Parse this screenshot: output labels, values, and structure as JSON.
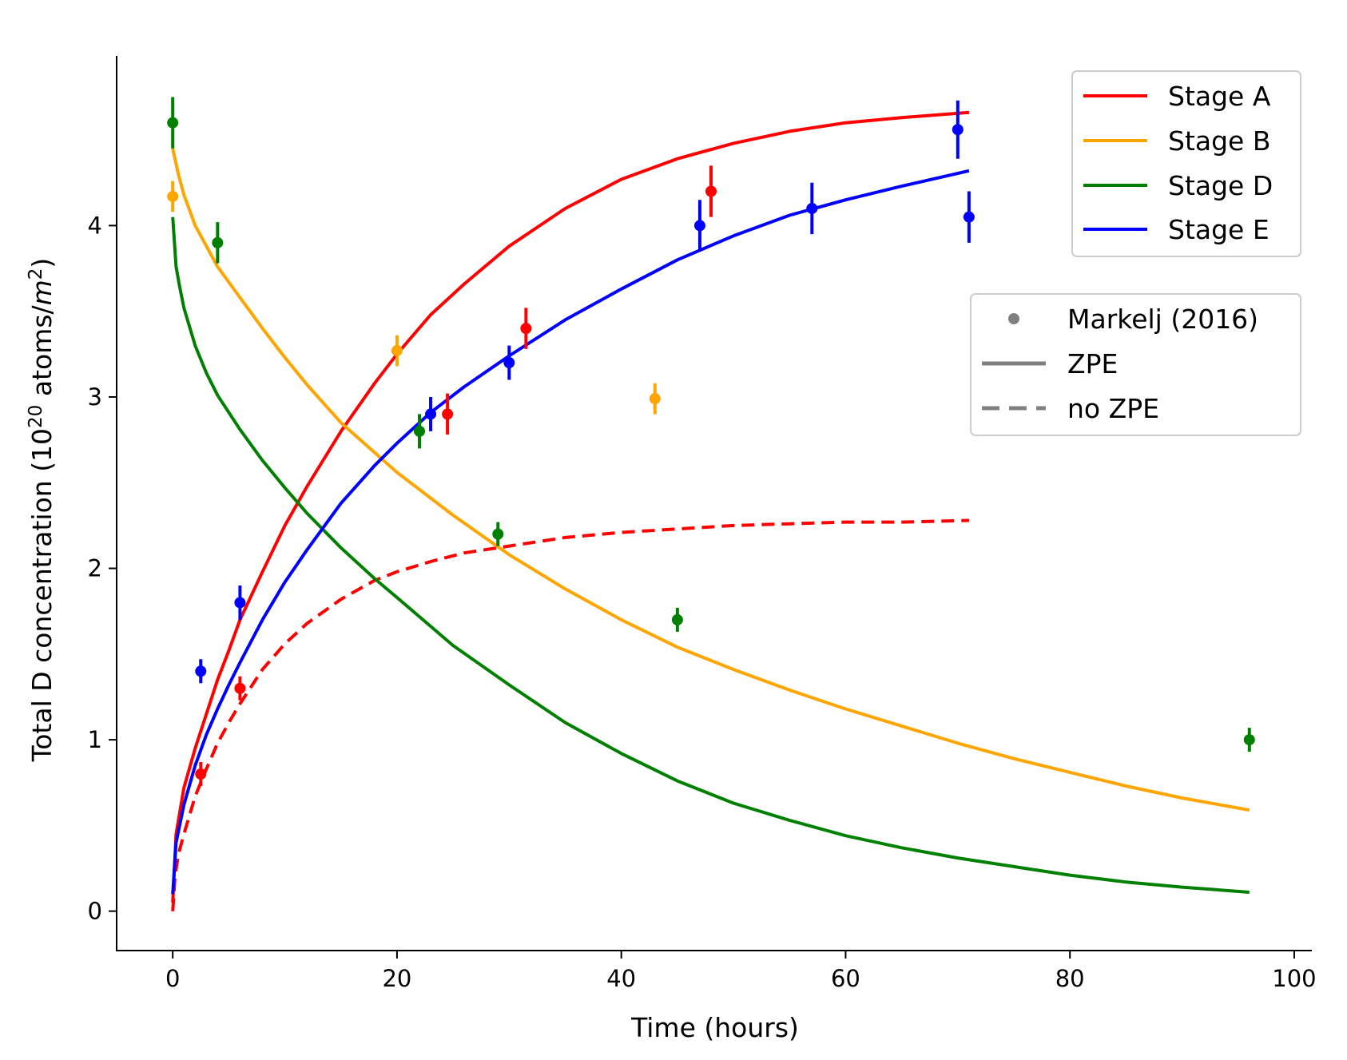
{
  "chart_data": {
    "type": "line",
    "title": "",
    "xlabel": "Time (hours)",
    "ylabel": {
      "main": "Total D concentration (10",
      "exp": "20",
      "mid": " atoms/",
      "unit": "m",
      "unit_exp": "2",
      "close": ")"
    },
    "xlim": [
      -5,
      101.5
    ],
    "ylim": [
      -0.23,
      4.99
    ],
    "x_ticks": [
      0,
      20,
      40,
      60,
      80,
      100
    ],
    "y_ticks": [
      0,
      1,
      2,
      3,
      4
    ],
    "grid": false,
    "colors": {
      "Stage A": "#ff0000",
      "Stage B": "#ffa500",
      "Stage D": "#008000",
      "Stage E": "#0000ff",
      "legend_key": "#808080"
    },
    "legend_series": {
      "placement": "top-right",
      "entries": [
        {
          "label": "Stage A",
          "color": "#ff0000"
        },
        {
          "label": "Stage B",
          "color": "#ffa500"
        },
        {
          "label": "Stage D",
          "color": "#008000"
        },
        {
          "label": "Stage E",
          "color": "#0000ff"
        }
      ]
    },
    "legend_styles": {
      "placement": "right",
      "entries": [
        {
          "label": "Markelj (2016)",
          "style": "marker"
        },
        {
          "label": "ZPE",
          "style": "solid"
        },
        {
          "label": "no ZPE",
          "style": "dashed"
        }
      ]
    },
    "curves": [
      {
        "series": "Stage A",
        "style": "solid",
        "x": [
          0,
          0.3,
          1,
          2,
          3,
          4,
          5,
          6,
          8,
          10,
          12,
          15,
          18,
          20,
          23,
          26,
          30,
          35,
          40,
          45,
          50,
          55,
          60,
          65,
          71
        ],
        "y": [
          0.05,
          0.45,
          0.72,
          0.95,
          1.15,
          1.35,
          1.52,
          1.7,
          1.98,
          2.25,
          2.48,
          2.8,
          3.08,
          3.25,
          3.48,
          3.66,
          3.88,
          4.1,
          4.27,
          4.39,
          4.48,
          4.55,
          4.6,
          4.63,
          4.66
        ]
      },
      {
        "series": "Stage A",
        "style": "dashed",
        "x": [
          0,
          0.2,
          0.5,
          1,
          2,
          3,
          4,
          5,
          6,
          8,
          10,
          12,
          15,
          18,
          20,
          23,
          26,
          30,
          35,
          40,
          45,
          50,
          55,
          60,
          65,
          71
        ],
        "y": [
          0.0,
          0.2,
          0.33,
          0.45,
          0.67,
          0.83,
          0.98,
          1.1,
          1.21,
          1.41,
          1.56,
          1.68,
          1.82,
          1.93,
          1.98,
          2.04,
          2.09,
          2.13,
          2.18,
          2.21,
          2.23,
          2.25,
          2.26,
          2.27,
          2.27,
          2.28
        ]
      },
      {
        "series": "Stage B",
        "style": "solid",
        "x": [
          0,
          0.5,
          1,
          2,
          4,
          6,
          8,
          10,
          12,
          15,
          20,
          25,
          30,
          35,
          40,
          45,
          50,
          55,
          60,
          65,
          70,
          75,
          80,
          85,
          90,
          96
        ],
        "y": [
          4.45,
          4.3,
          4.18,
          4.0,
          3.76,
          3.58,
          3.4,
          3.23,
          3.07,
          2.85,
          2.56,
          2.31,
          2.08,
          1.88,
          1.7,
          1.54,
          1.41,
          1.29,
          1.18,
          1.08,
          0.98,
          0.89,
          0.81,
          0.73,
          0.66,
          0.59
        ]
      },
      {
        "series": "Stage D",
        "style": "solid",
        "x": [
          0,
          0.3,
          0.6,
          1,
          2,
          3,
          4,
          6,
          8,
          10,
          12,
          15,
          18,
          20,
          25,
          30,
          35,
          40,
          45,
          50,
          55,
          60,
          65,
          70,
          75,
          80,
          85,
          90,
          96
        ],
        "y": [
          4.05,
          3.76,
          3.65,
          3.52,
          3.3,
          3.14,
          3.01,
          2.81,
          2.63,
          2.47,
          2.32,
          2.12,
          1.94,
          1.83,
          1.55,
          1.32,
          1.1,
          0.92,
          0.76,
          0.63,
          0.53,
          0.44,
          0.37,
          0.31,
          0.26,
          0.21,
          0.17,
          0.14,
          0.11
        ]
      },
      {
        "series": "Stage E",
        "style": "solid",
        "x": [
          0,
          0.3,
          1,
          2,
          3,
          4,
          5,
          6,
          8,
          10,
          12,
          15,
          18,
          20,
          23,
          26,
          30,
          35,
          40,
          45,
          50,
          55,
          60,
          65,
          71
        ],
        "y": [
          0.1,
          0.4,
          0.62,
          0.85,
          1.03,
          1.18,
          1.32,
          1.45,
          1.7,
          1.92,
          2.11,
          2.38,
          2.6,
          2.73,
          2.91,
          3.06,
          3.24,
          3.45,
          3.63,
          3.8,
          3.94,
          4.06,
          4.15,
          4.23,
          4.32
        ]
      }
    ],
    "points": [
      {
        "series": "Stage A",
        "x": 2.5,
        "y": 0.8,
        "err": 0.07
      },
      {
        "series": "Stage A",
        "x": 6,
        "y": 1.3,
        "err": 0.07
      },
      {
        "series": "Stage A",
        "x": 24.5,
        "y": 2.9,
        "err": 0.12
      },
      {
        "series": "Stage A",
        "x": 31.5,
        "y": 3.4,
        "err": 0.12
      },
      {
        "series": "Stage A",
        "x": 48,
        "y": 4.2,
        "err": 0.15
      },
      {
        "series": "Stage B",
        "x": 0,
        "y": 4.17,
        "err": 0.09
      },
      {
        "series": "Stage B",
        "x": 20,
        "y": 3.27,
        "err": 0.09
      },
      {
        "series": "Stage B",
        "x": 43,
        "y": 2.99,
        "err": 0.09
      },
      {
        "series": "Stage D",
        "x": 0,
        "y": 4.6,
        "err": 0.15
      },
      {
        "series": "Stage D",
        "x": 4,
        "y": 3.9,
        "err": 0.12
      },
      {
        "series": "Stage D",
        "x": 22,
        "y": 2.8,
        "err": 0.1
      },
      {
        "series": "Stage D",
        "x": 29,
        "y": 2.2,
        "err": 0.07
      },
      {
        "series": "Stage D",
        "x": 45,
        "y": 1.7,
        "err": 0.07
      },
      {
        "series": "Stage D",
        "x": 96,
        "y": 1.0,
        "err": 0.07
      },
      {
        "series": "Stage E",
        "x": 2.5,
        "y": 1.4,
        "err": 0.07
      },
      {
        "series": "Stage E",
        "x": 6,
        "y": 1.8,
        "err": 0.1
      },
      {
        "series": "Stage E",
        "x": 23,
        "y": 2.9,
        "err": 0.1
      },
      {
        "series": "Stage E",
        "x": 30,
        "y": 3.2,
        "err": 0.1
      },
      {
        "series": "Stage E",
        "x": 47,
        "y": 4.0,
        "err": 0.15
      },
      {
        "series": "Stage E",
        "x": 57,
        "y": 4.1,
        "err": 0.15
      },
      {
        "series": "Stage E",
        "x": 70,
        "y": 4.56,
        "err": 0.17
      },
      {
        "series": "Stage E",
        "x": 71,
        "y": 4.05,
        "err": 0.15
      }
    ]
  }
}
